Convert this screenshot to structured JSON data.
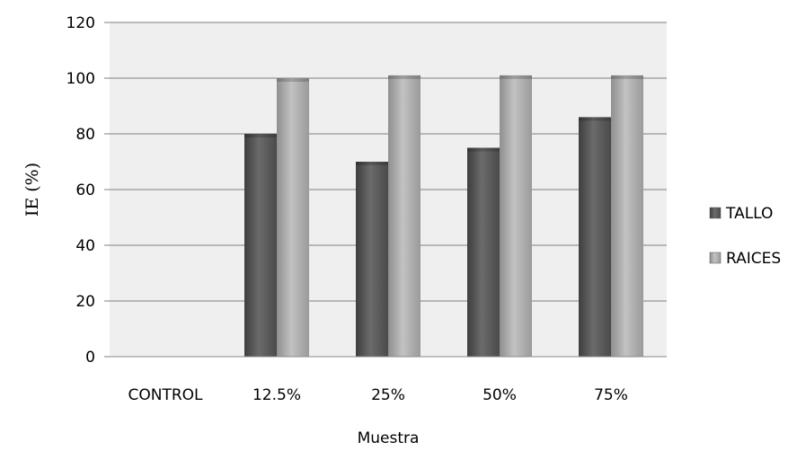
{
  "chart_data": {
    "type": "bar",
    "title": "",
    "xlabel": "Muestra",
    "ylabel": "IE (%)",
    "ylim": [
      0,
      120
    ],
    "yticks": [
      0,
      20,
      40,
      60,
      80,
      100,
      120
    ],
    "categories": [
      "CONTROL",
      "12.5%",
      "25%",
      "50%",
      "75%"
    ],
    "series": [
      {
        "name": "TALLO",
        "values": [
          0,
          80,
          70,
          75,
          86
        ],
        "color": "#5a5a5a"
      },
      {
        "name": "RAICES",
        "values": [
          0,
          100,
          101,
          101,
          101
        ],
        "color": "#a9a9a9"
      }
    ],
    "grid": true,
    "legend_position": "right",
    "plot_background": "#efefef"
  }
}
